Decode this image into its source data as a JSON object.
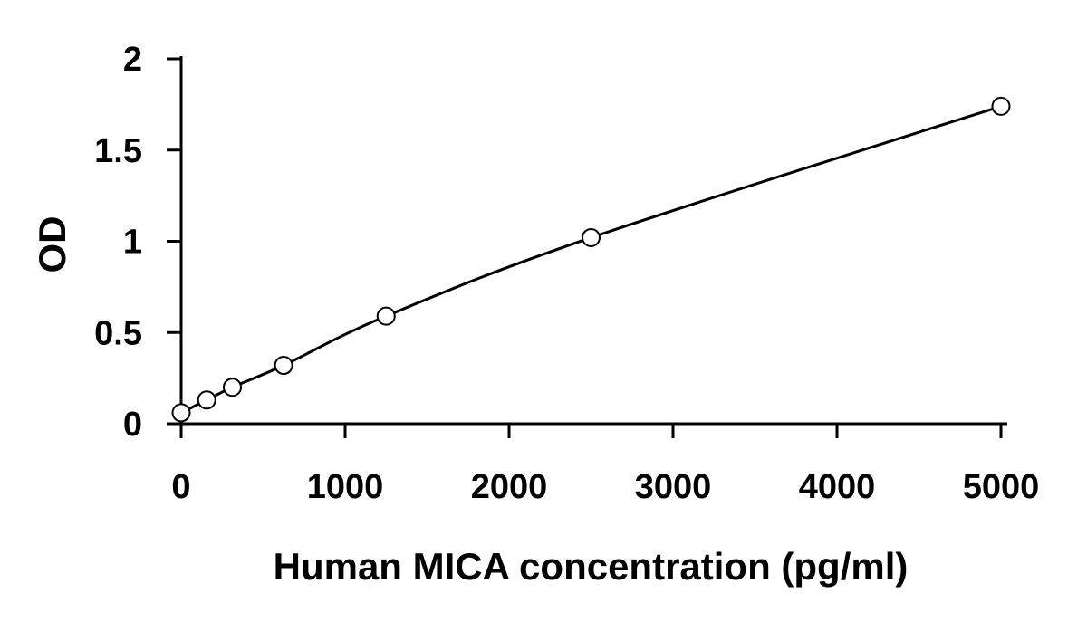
{
  "chart_data": {
    "type": "scatter",
    "title": "",
    "xlabel": "Human MICA concentration (pg/ml)",
    "ylabel": "OD",
    "xlim": [
      0,
      5000
    ],
    "ylim": [
      0,
      2
    ],
    "x_ticks": [
      0,
      1000,
      2000,
      3000,
      4000,
      5000
    ],
    "x_tick_labels": [
      "0",
      "1000",
      "2000",
      "3000",
      "4000",
      "5000"
    ],
    "y_ticks": [
      0,
      0.5,
      1,
      1.5,
      2
    ],
    "y_tick_labels": [
      "0",
      "0.5",
      "1",
      "1.5",
      "2"
    ],
    "grid": false,
    "legend": "none",
    "marker": "open-circle",
    "fit": "smooth-curve",
    "color": "#000000",
    "series": [
      {
        "x": [
          0,
          156,
          312,
          625,
          1250,
          2500,
          5000
        ],
        "y": [
          0.06,
          0.13,
          0.2,
          0.32,
          0.59,
          1.02,
          1.74
        ]
      }
    ]
  }
}
